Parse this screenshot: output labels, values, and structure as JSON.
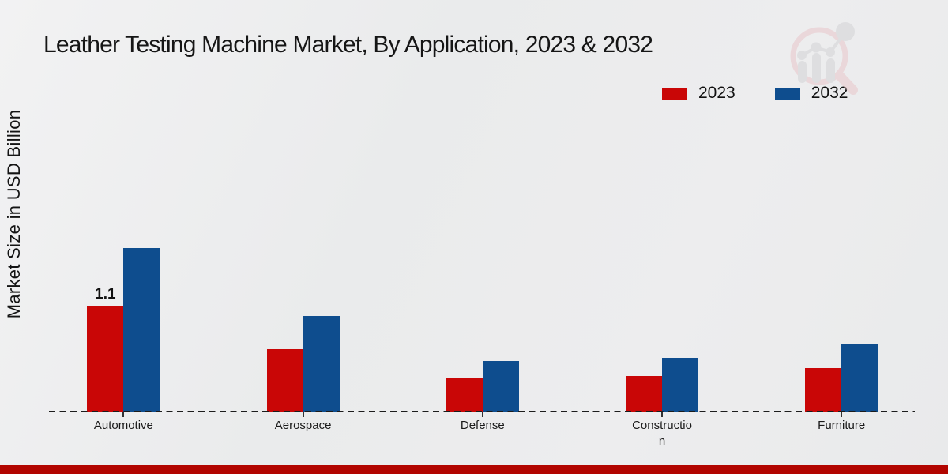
{
  "page": {
    "title": "Leather Testing Machine Market, By Application, 2023 & 2032"
  },
  "y_axis_label": "Market Size in USD Billion",
  "chart_data": {
    "type": "bar",
    "title": "Leather Testing Machine Market, By Application, 2023 & 2032",
    "xlabel": "",
    "ylabel": "Market Size in USD Billion",
    "categories": [
      "Automotive",
      "Aerospace",
      "Defense",
      "Construction",
      "Furniture"
    ],
    "tick_labels": [
      "Automotive",
      "Aerospace",
      "Defense",
      "Constructio\nn",
      "Furniture"
    ],
    "series": [
      {
        "name": "2023",
        "color": "#c90606",
        "values": [
          1.1,
          0.65,
          0.35,
          0.37,
          0.45
        ]
      },
      {
        "name": "2032",
        "color": "#0e4d8e",
        "values": [
          1.7,
          1.0,
          0.53,
          0.56,
          0.7
        ]
      }
    ],
    "annotations": [
      {
        "series": "2023",
        "category": "Automotive",
        "text": "1.1"
      }
    ],
    "ylim": [
      0,
      2.0
    ],
    "grid": false,
    "legend_position": "top-right",
    "baseline_style": "dashed",
    "icons": [
      "brand-watermark-magnifier-bar-chart"
    ]
  },
  "colors": {
    "series_2023": "#c90606",
    "series_2032": "#0e4d8e",
    "bottom_accent": "#b20500",
    "axis": "#1c1c1c",
    "watermark_pink": "#e9c6ca",
    "watermark_gray": "#d2d3d6"
  }
}
